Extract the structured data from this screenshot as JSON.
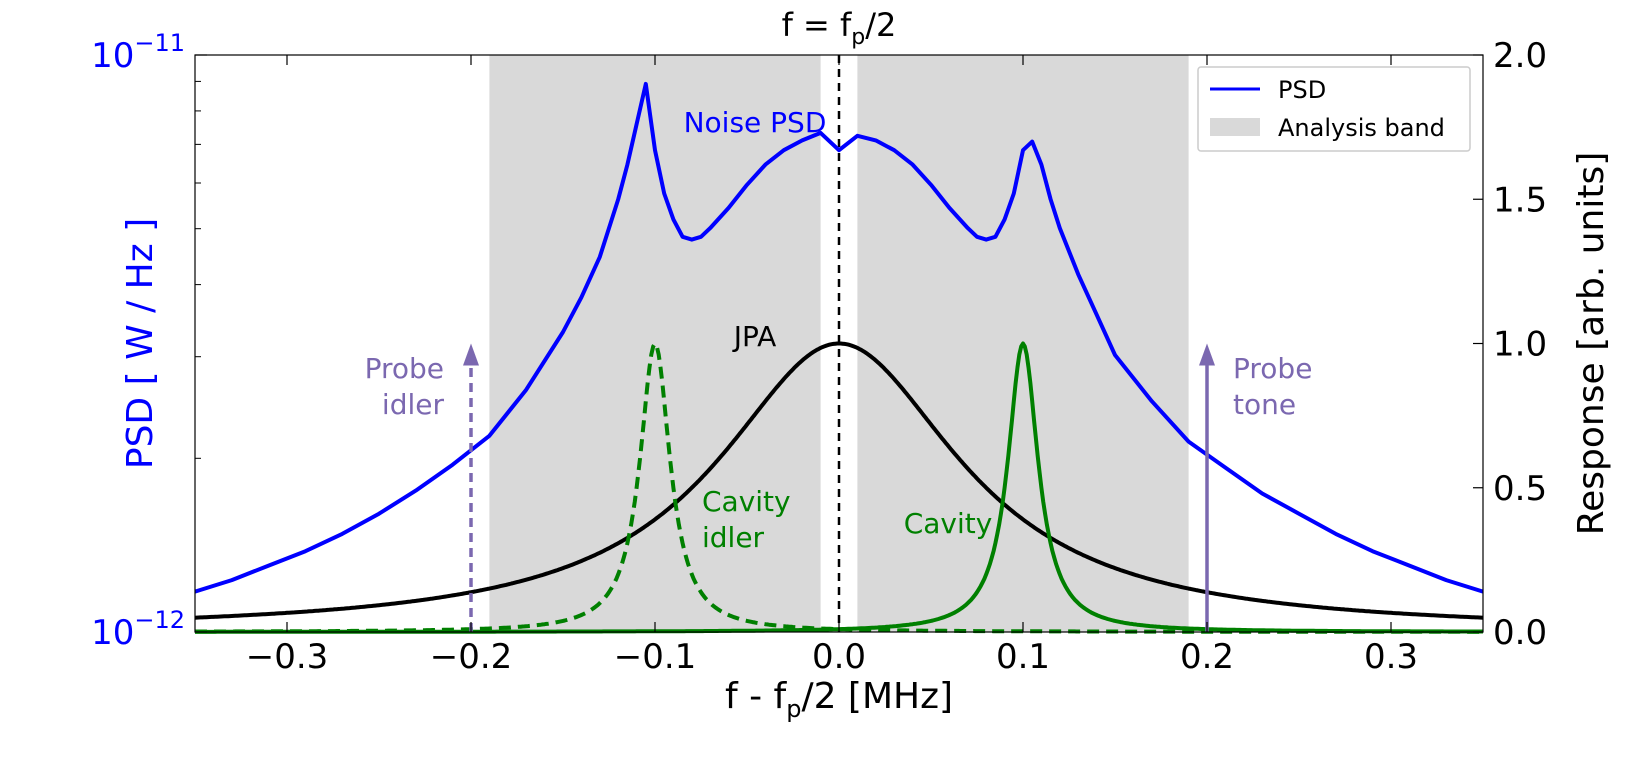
{
  "chart_data": {
    "type": "line",
    "title": "f = f",
    "title_sub": "p",
    "title_tail": "/2",
    "xlabel": {
      "pre": "f - f",
      "sub": "p",
      "post": "/2 [MHz]"
    },
    "ylabel_left": "PSD [ W / Hz ]",
    "ylabel_right": "Response [arb. units]",
    "xlim": [
      -0.35,
      0.35
    ],
    "ylim_left_log10": [
      -12,
      -11
    ],
    "ylim_right": [
      0,
      2.0
    ],
    "x_ticks": [
      {
        "value": -0.3,
        "label": "−0.3"
      },
      {
        "value": -0.2,
        "label": "−0.2"
      },
      {
        "value": -0.1,
        "label": "−0.1"
      },
      {
        "value": 0.0,
        "label": "0.0"
      },
      {
        "value": 0.1,
        "label": "0.1"
      },
      {
        "value": 0.2,
        "label": "0.2"
      },
      {
        "value": 0.3,
        "label": "0.3"
      }
    ],
    "y_left_ticks": [
      {
        "value": -11,
        "base": "10",
        "exp": "−11"
      },
      {
        "value": -12,
        "base": "10",
        "exp": "−12"
      }
    ],
    "y_right_ticks": [
      {
        "value": 0.0,
        "label": "0.0"
      },
      {
        "value": 0.5,
        "label": "0.5"
      },
      {
        "value": 1.0,
        "label": "1.0"
      },
      {
        "value": 1.5,
        "label": "1.5"
      },
      {
        "value": 2.0,
        "label": "2.0"
      }
    ],
    "analysis_band": [
      [
        -0.19,
        -0.01
      ],
      [
        0.01,
        0.19
      ]
    ],
    "center_line_x": 0.0,
    "series": [
      {
        "name": "PSD",
        "axis": "left_log",
        "color": "#0000ff",
        "style": "solid",
        "x": [
          -0.35,
          -0.33,
          -0.31,
          -0.29,
          -0.27,
          -0.25,
          -0.23,
          -0.21,
          -0.19,
          -0.17,
          -0.15,
          -0.14,
          -0.13,
          -0.12,
          -0.115,
          -0.11,
          -0.105,
          -0.1,
          -0.095,
          -0.09,
          -0.085,
          -0.08,
          -0.075,
          -0.07,
          -0.06,
          -0.05,
          -0.04,
          -0.03,
          -0.02,
          -0.01,
          0.0,
          0.01,
          0.02,
          0.03,
          0.04,
          0.05,
          0.06,
          0.07,
          0.075,
          0.08,
          0.085,
          0.09,
          0.095,
          0.1,
          0.105,
          0.11,
          0.115,
          0.12,
          0.13,
          0.14,
          0.15,
          0.17,
          0.19,
          0.21,
          0.23,
          0.25,
          0.27,
          0.29,
          0.31,
          0.33,
          0.35
        ],
        "y": [
          -11.93,
          -11.91,
          -11.885,
          -11.86,
          -11.83,
          -11.795,
          -11.755,
          -11.71,
          -11.66,
          -11.58,
          -11.48,
          -11.42,
          -11.35,
          -11.25,
          -11.19,
          -11.12,
          -11.05,
          -11.165,
          -11.24,
          -11.285,
          -11.315,
          -11.32,
          -11.315,
          -11.3,
          -11.265,
          -11.225,
          -11.19,
          -11.165,
          -11.148,
          -11.135,
          -11.165,
          -11.14,
          -11.148,
          -11.165,
          -11.19,
          -11.225,
          -11.265,
          -11.3,
          -11.315,
          -11.32,
          -11.315,
          -11.285,
          -11.24,
          -11.165,
          -11.15,
          -11.19,
          -11.25,
          -11.3,
          -11.38,
          -11.45,
          -11.52,
          -11.6,
          -11.67,
          -11.715,
          -11.76,
          -11.795,
          -11.83,
          -11.86,
          -11.885,
          -11.91,
          -11.93
        ]
      },
      {
        "name": "JPA",
        "axis": "right",
        "color": "#000000",
        "style": "solid",
        "lorentzian": {
          "center": 0.0,
          "hwhm": 0.08,
          "amplitude": 1.0
        }
      },
      {
        "name": "Cavity",
        "axis": "right",
        "color": "#008000",
        "style": "solid",
        "lorentzian": {
          "center": 0.1,
          "hwhm": 0.01,
          "amplitude": 1.0
        }
      },
      {
        "name": "Cavity idler",
        "axis": "right",
        "color": "#008000",
        "style": "dashed",
        "lorentzian": {
          "center": -0.1,
          "hwhm": 0.01,
          "amplitude": 1.0
        }
      }
    ],
    "arrows": [
      {
        "name": "Probe idler",
        "x": -0.2,
        "y_from": 0.0,
        "y_to": 1.0,
        "style": "dashed",
        "color": "#7b68b0"
      },
      {
        "name": "Probe tone",
        "x": 0.2,
        "y_from": 0.0,
        "y_to": 1.0,
        "style": "solid",
        "color": "#7b68b0"
      }
    ],
    "annotations": [
      {
        "id": "noise-psd",
        "lines": [
          "Noise PSD"
        ],
        "color": "#0000ff"
      },
      {
        "id": "jpa",
        "lines": [
          "JPA"
        ],
        "color": "#000000"
      },
      {
        "id": "cavity",
        "lines": [
          "Cavity"
        ],
        "color": "#008000"
      },
      {
        "id": "cavity-idler",
        "lines": [
          "Cavity",
          "idler"
        ],
        "color": "#008000"
      },
      {
        "id": "probe-idler",
        "lines": [
          "Probe",
          "idler"
        ],
        "color": "#7b68b0"
      },
      {
        "id": "probe-tone",
        "lines": [
          "Probe",
          "tone"
        ],
        "color": "#7b68b0"
      }
    ],
    "legend": {
      "placement": "top-right",
      "entries": [
        {
          "label": "PSD",
          "kind": "line",
          "color": "#0000ff"
        },
        {
          "label": "Analysis band",
          "kind": "patch",
          "color": "#d9d9d9"
        }
      ]
    },
    "colors": {
      "left_axis": "#0000ff",
      "band": "#d9d9d9",
      "axis": "#000000"
    }
  }
}
